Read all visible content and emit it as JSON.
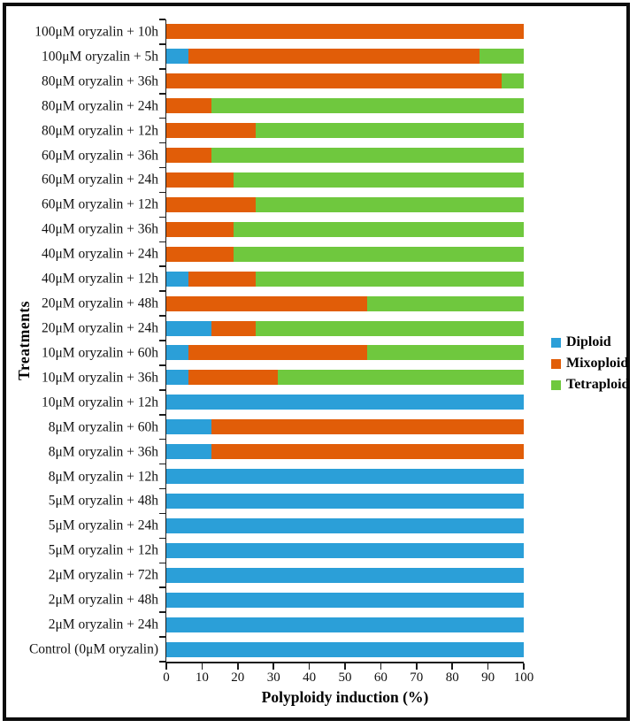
{
  "chart_data": {
    "type": "bar",
    "orientation": "horizontal",
    "stacked": true,
    "title": "",
    "xlabel": "Polyploidy induction (%)",
    "ylabel": "Treatments",
    "xlim": [
      0,
      100
    ],
    "xticks": [
      0,
      10,
      20,
      30,
      40,
      50,
      60,
      70,
      80,
      90,
      100
    ],
    "grid": false,
    "legend_position": "right-middle",
    "categories": [
      "100μM oryzalin + 10h",
      "100μM oryzalin + 5h",
      "80μM oryzalin + 36h",
      "80μM oryzalin + 24h",
      "80μM oryzalin + 12h",
      "60μM oryzalin + 36h",
      "60μM oryzalin + 24h",
      "60μM oryzalin + 12h",
      "40μM oryzalin + 36h",
      "40μM oryzalin + 24h",
      "40μM oryzalin + 12h",
      "20μM oryzalin + 48h",
      "20μM oryzalin + 24h",
      "10μM oryzalin + 60h",
      "10μM oryzalin + 36h",
      "10μM oryzalin + 12h",
      "8μM oryzalin + 60h",
      "8μM oryzalin + 36h",
      "8μM oryzalin + 12h",
      "5μM oryzalin + 48h",
      "5μM oryzalin + 24h",
      "5μM oryzalin + 12h",
      "2μM oryzalin + 72h",
      "2μM oryzalin + 48h",
      "2μM oryzalin + 24h",
      "Control (0μM oryzalin)"
    ],
    "series": [
      {
        "name": "Diploid",
        "color": "#2B9FD8",
        "values": [
          0,
          6.25,
          0,
          0,
          0,
          0,
          0,
          0,
          0,
          0,
          6.25,
          0,
          12.5,
          6.25,
          6.25,
          100,
          12.5,
          12.5,
          100,
          100,
          100,
          100,
          100,
          100,
          100,
          100
        ]
      },
      {
        "name": "Mixoploid",
        "color": "#E15D08",
        "values": [
          100,
          81.25,
          93.75,
          12.5,
          25,
          12.5,
          18.75,
          25,
          18.75,
          18.75,
          18.75,
          56.25,
          12.5,
          50,
          25,
          0,
          87.5,
          87.5,
          0,
          0,
          0,
          0,
          0,
          0,
          0,
          0
        ]
      },
      {
        "name": "Tetraploid",
        "color": "#6FC83E",
        "values": [
          0,
          12.5,
          6.25,
          87.5,
          75,
          87.5,
          81.25,
          75,
          81.25,
          81.25,
          75,
          43.75,
          75,
          43.75,
          68.75,
          0,
          0,
          0,
          0,
          0,
          0,
          0,
          0,
          0,
          0,
          0
        ]
      }
    ]
  }
}
